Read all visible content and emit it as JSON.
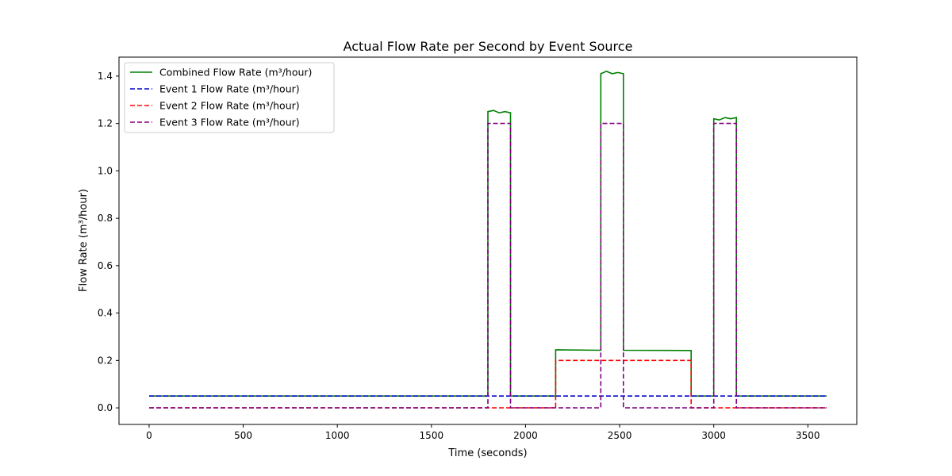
{
  "chart_data": {
    "type": "line",
    "title": "Actual Flow Rate per Second by Event Source",
    "xlabel": "Time (seconds)",
    "ylabel": "Flow Rate (m³/hour)",
    "xlim": [
      -160,
      3760
    ],
    "ylim": [
      -0.07,
      1.48
    ],
    "xticks": [
      0,
      500,
      1000,
      1500,
      2000,
      2500,
      3000,
      3500
    ],
    "yticks": [
      0.0,
      0.2,
      0.4,
      0.6,
      0.8,
      1.0,
      1.2,
      1.4
    ],
    "xtick_labels": [
      "0",
      "500",
      "1000",
      "1500",
      "2000",
      "2500",
      "3000",
      "3500"
    ],
    "ytick_labels": [
      "0.0",
      "0.2",
      "0.4",
      "0.6",
      "0.8",
      "1.0",
      "1.2",
      "1.4"
    ],
    "grid": false,
    "legend_position": "top-left",
    "series": [
      {
        "name": "Combined Flow Rate (m³/hour)",
        "color": "#008000",
        "style": "solid",
        "x": [
          0,
          1800,
          1800,
          1830,
          1860,
          1890,
          1920,
          1920,
          2160,
          2160,
          2400,
          2400,
          2430,
          2460,
          2490,
          2520,
          2520,
          2880,
          2880,
          3000,
          3000,
          3030,
          3060,
          3090,
          3120,
          3120,
          3600
        ],
        "y": [
          0.05,
          0.05,
          1.25,
          1.255,
          1.245,
          1.25,
          1.245,
          0.05,
          0.05,
          0.245,
          0.243,
          1.41,
          1.42,
          1.41,
          1.415,
          1.41,
          0.243,
          0.242,
          0.05,
          0.05,
          1.22,
          1.215,
          1.225,
          1.22,
          1.225,
          0.05,
          0.05
        ]
      },
      {
        "name": "Event 1 Flow Rate (m³/hour)",
        "color": "#0000cc",
        "style": "dashed",
        "x": [
          0,
          3600
        ],
        "y": [
          0.05,
          0.05
        ]
      },
      {
        "name": "Event 2 Flow Rate (m³/hour)",
        "color": "#ff0000",
        "style": "dashed",
        "x": [
          0,
          2160,
          2160,
          2880,
          2880,
          3600
        ],
        "y": [
          0,
          0,
          0.2,
          0.2,
          0,
          0
        ]
      },
      {
        "name": "Event 3 Flow Rate (m³/hour)",
        "color": "#800080",
        "style": "dashed",
        "x": [
          0,
          1800,
          1800,
          1920,
          1920,
          2400,
          2400,
          2520,
          2520,
          3000,
          3000,
          3120,
          3120,
          3600
        ],
        "y": [
          0,
          0,
          1.2,
          1.2,
          0,
          0,
          1.2,
          1.2,
          0,
          0,
          1.2,
          1.2,
          0,
          0
        ]
      }
    ]
  }
}
